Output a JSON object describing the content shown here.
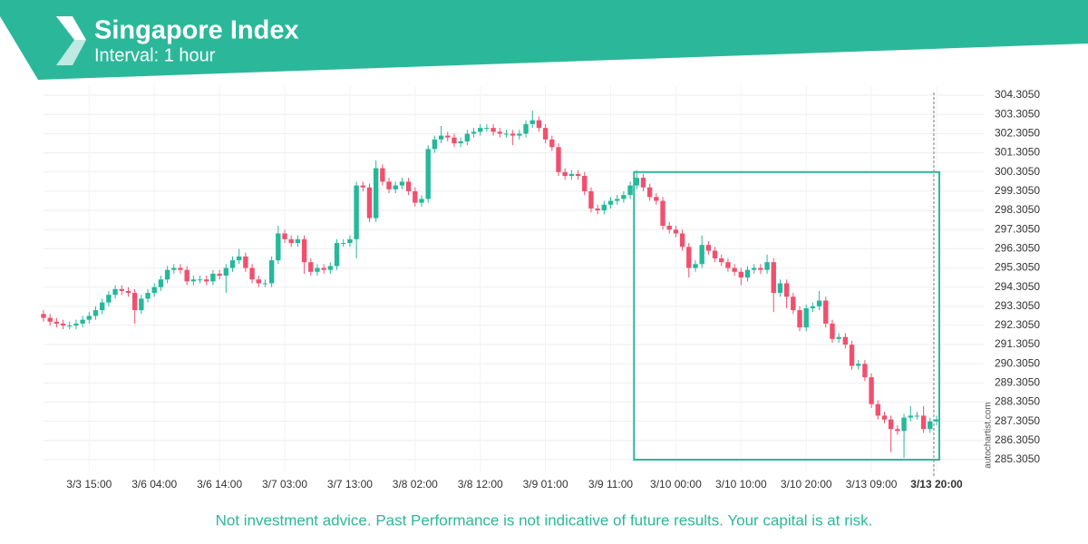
{
  "chart_data": {
    "type": "candlestick",
    "title": "Singapore Index",
    "subtitle": "Interval: 1 hour",
    "footer": "Not investment advice. Past Performance is not indicative of future results. Your capital is at risk.",
    "watermark": "autochartist.com",
    "up_color": "#26b89a",
    "down_color": "#f0506e",
    "grid": true,
    "categories": [
      null,
      null,
      null,
      null,
      null,
      null,
      null,
      "3/3 15:00",
      null,
      null,
      null,
      null,
      null,
      null,
      null,
      null,
      null,
      "3/6 04:00",
      null,
      null,
      null,
      null,
      null,
      null,
      null,
      null,
      null,
      "3/6 14:00",
      null,
      null,
      null,
      null,
      null,
      null,
      null,
      null,
      null,
      "3/7 03:00",
      null,
      null,
      null,
      null,
      null,
      null,
      null,
      null,
      null,
      "3/7 13:00",
      null,
      null,
      null,
      null,
      null,
      null,
      null,
      null,
      null,
      "3/8 02:00",
      null,
      null,
      null,
      null,
      null,
      null,
      null,
      null,
      null,
      "3/8 12:00",
      null,
      null,
      null,
      null,
      null,
      null,
      null,
      null,
      null,
      "3/9 01:00",
      null,
      null,
      null,
      null,
      null,
      null,
      null,
      null,
      null,
      "3/9 11:00",
      null,
      null,
      null,
      null,
      null,
      null,
      null,
      null,
      null,
      "3/10 00:00",
      null,
      null,
      null,
      null,
      null,
      null,
      null,
      null,
      null,
      "3/10 10:00",
      null,
      null,
      null,
      null,
      null,
      null,
      null,
      null,
      null,
      "3/10 20:00",
      null,
      null,
      null,
      null,
      null,
      null,
      null,
      null,
      null,
      "3/13 09:00",
      null,
      null,
      null,
      null,
      null,
      null,
      null,
      null,
      null,
      "3/13 20:00"
    ],
    "open": [
      292.9,
      292.7,
      292.5,
      292.4,
      292.3,
      292.3,
      292.4,
      292.6,
      292.8,
      293.1,
      293.5,
      293.9,
      294.2,
      294.1,
      294.0,
      293.1,
      293.7,
      294.0,
      294.3,
      294.7,
      295.2,
      295.3,
      295.2,
      294.6,
      294.7,
      294.7,
      294.6,
      295.0,
      294.9,
      295.3,
      295.7,
      295.9,
      295.3,
      294.7,
      294.5,
      294.5,
      295.7,
      297.1,
      296.8,
      296.6,
      296.8,
      295.6,
      295.1,
      295.3,
      295.2,
      295.4,
      296.6,
      296.6,
      296.8,
      299.6,
      299.5,
      297.9,
      300.5,
      299.8,
      299.4,
      299.6,
      299.8,
      299.3,
      298.7,
      298.9,
      301.5,
      302.0,
      302.2,
      302.1,
      301.8,
      301.9,
      302.3,
      302.4,
      302.6,
      302.6,
      302.4,
      302.3,
      302.3,
      302.2,
      302.3,
      302.8,
      303.0,
      302.6,
      302.0,
      301.6,
      300.3,
      300.1,
      300.2,
      300.1,
      299.3,
      298.4,
      298.3,
      298.6,
      298.8,
      298.9,
      299.1,
      299.6,
      300.0,
      299.5,
      299.0,
      298.8,
      297.5,
      297.3,
      297.1,
      296.4,
      295.3,
      295.5,
      296.5,
      296.2,
      295.8,
      295.6,
      295.3,
      295.1,
      294.8,
      295.2,
      295.3,
      295.2,
      295.6,
      294.0,
      294.5,
      293.8,
      293.1,
      292.2,
      293.2,
      293.3,
      293.6,
      292.4,
      291.6,
      291.7,
      291.3,
      290.2,
      290.3,
      289.6,
      288.2,
      287.6,
      287.4,
      286.9,
      286.8,
      287.5,
      287.6,
      287.6,
      286.9,
      287.3
    ],
    "high": [
      293.1,
      292.9,
      292.7,
      292.6,
      292.5,
      292.6,
      292.8,
      293.0,
      293.3,
      293.7,
      294.1,
      294.4,
      294.4,
      294.3,
      294.2,
      293.9,
      294.2,
      294.5,
      294.9,
      295.4,
      295.5,
      295.5,
      295.4,
      294.9,
      294.9,
      294.9,
      295.2,
      295.2,
      295.5,
      295.9,
      296.3,
      296.1,
      295.5,
      294.9,
      294.7,
      295.9,
      297.5,
      297.3,
      297.0,
      297.0,
      297.0,
      295.8,
      295.5,
      295.5,
      295.6,
      296.8,
      296.8,
      297.0,
      299.8,
      299.8,
      299.7,
      300.9,
      300.7,
      300.0,
      299.8,
      300.0,
      300.0,
      299.5,
      299.1,
      301.7,
      302.2,
      302.7,
      302.4,
      302.3,
      302.1,
      302.5,
      302.6,
      302.8,
      302.8,
      302.8,
      302.6,
      302.5,
      302.5,
      302.5,
      303.0,
      303.5,
      303.2,
      302.8,
      302.2,
      301.8,
      300.5,
      300.4,
      300.4,
      300.3,
      299.5,
      298.6,
      298.8,
      299.0,
      299.1,
      299.3,
      299.8,
      300.4,
      300.2,
      299.7,
      299.2,
      299.0,
      297.7,
      297.5,
      297.3,
      296.6,
      295.7,
      297.0,
      296.7,
      296.4,
      296.0,
      295.8,
      295.5,
      295.3,
      295.4,
      295.5,
      295.5,
      296.0,
      295.8,
      294.7,
      294.7,
      294.0,
      293.3,
      293.4,
      293.5,
      294.1,
      293.8,
      292.6,
      291.9,
      291.9,
      291.5,
      290.5,
      290.5,
      289.8,
      288.4,
      287.8,
      287.6,
      287.1,
      287.7,
      288.1,
      287.8,
      288.1,
      287.5,
      287.6
    ],
    "low": [
      292.5,
      292.3,
      292.2,
      292.1,
      292.1,
      292.1,
      292.2,
      292.4,
      292.6,
      292.9,
      293.3,
      293.7,
      293.9,
      293.8,
      292.4,
      292.9,
      293.5,
      293.8,
      294.1,
      294.5,
      295.0,
      295.0,
      294.4,
      294.4,
      294.5,
      294.4,
      294.4,
      294.7,
      294.0,
      295.1,
      295.5,
      295.1,
      294.5,
      294.3,
      294.3,
      294.3,
      295.5,
      296.6,
      296.4,
      296.4,
      295.0,
      294.9,
      294.9,
      295.0,
      295.0,
      295.2,
      296.4,
      296.4,
      295.8,
      299.3,
      297.7,
      297.7,
      299.6,
      299.2,
      299.2,
      299.4,
      299.1,
      298.5,
      298.5,
      298.7,
      301.3,
      301.8,
      301.9,
      301.6,
      301.6,
      301.7,
      302.1,
      302.2,
      302.4,
      302.2,
      302.1,
      302.1,
      301.7,
      302.0,
      302.1,
      302.6,
      302.4,
      301.8,
      301.4,
      300.1,
      299.9,
      299.9,
      299.9,
      299.1,
      298.2,
      298.1,
      298.1,
      298.4,
      298.6,
      298.7,
      298.9,
      299.4,
      299.3,
      298.8,
      298.6,
      297.3,
      297.1,
      296.9,
      296.2,
      294.8,
      295.1,
      295.3,
      296.0,
      295.6,
      295.4,
      295.1,
      294.9,
      294.4,
      294.6,
      295.0,
      295.0,
      295.0,
      293.0,
      293.8,
      293.2,
      292.9,
      292.0,
      292.0,
      293.0,
      293.1,
      292.2,
      291.4,
      291.4,
      291.1,
      290.0,
      290.0,
      289.4,
      288.0,
      287.4,
      287.2,
      285.7,
      286.6,
      285.4,
      287.3,
      287.4,
      286.7,
      286.7,
      287.1
    ],
    "close": [
      292.7,
      292.5,
      292.4,
      292.3,
      292.3,
      292.4,
      292.6,
      292.8,
      293.1,
      293.5,
      293.9,
      294.2,
      294.1,
      294.0,
      293.1,
      293.7,
      294.0,
      294.3,
      294.7,
      295.2,
      295.3,
      295.2,
      294.6,
      294.7,
      294.7,
      294.6,
      295.0,
      294.9,
      295.3,
      295.7,
      295.9,
      295.3,
      294.7,
      294.5,
      294.5,
      295.7,
      297.1,
      296.8,
      296.6,
      296.8,
      295.6,
      295.1,
      295.3,
      295.2,
      295.4,
      296.6,
      296.6,
      296.8,
      299.6,
      299.5,
      297.9,
      300.5,
      299.8,
      299.4,
      299.6,
      299.8,
      299.3,
      298.7,
      298.9,
      301.5,
      302.0,
      302.2,
      302.1,
      301.8,
      301.9,
      302.3,
      302.4,
      302.6,
      302.6,
      302.4,
      302.3,
      302.3,
      302.2,
      302.3,
      302.8,
      303.0,
      302.6,
      302.0,
      301.6,
      300.3,
      300.1,
      300.2,
      300.1,
      299.3,
      298.4,
      298.3,
      298.6,
      298.8,
      298.9,
      299.1,
      299.6,
      300.0,
      299.5,
      299.0,
      298.8,
      297.5,
      297.3,
      297.1,
      296.4,
      295.3,
      295.5,
      296.5,
      296.2,
      295.8,
      295.6,
      295.3,
      295.1,
      294.8,
      295.2,
      295.3,
      295.2,
      295.6,
      294.0,
      294.5,
      293.8,
      293.1,
      292.2,
      293.2,
      293.3,
      293.6,
      292.4,
      291.6,
      291.7,
      291.3,
      290.2,
      290.3,
      289.6,
      288.2,
      287.6,
      287.4,
      286.9,
      286.8,
      287.5,
      287.6,
      287.6,
      286.9,
      287.3,
      287.4
    ],
    "pattern": {
      "start": 91,
      "end": 137,
      "top": 300.3,
      "bottom": 285.305,
      "color": "#2bb89a"
    },
    "ylim": [
      284.69,
      304.78
    ],
    "yticks": [
      {
        "value": 285.305,
        "label": "285.3050"
      },
      {
        "value": 286.305,
        "label": "286.3050"
      },
      {
        "value": 287.305,
        "label": "287.3050"
      },
      {
        "value": 288.305,
        "label": "288.3050"
      },
      {
        "value": 289.305,
        "label": "289.3050"
      },
      {
        "value": 290.305,
        "label": "290.3050"
      },
      {
        "value": 291.305,
        "label": "291.3050"
      },
      {
        "value": 292.305,
        "label": "292.3050"
      },
      {
        "value": 293.305,
        "label": "293.3050"
      },
      {
        "value": 294.305,
        "label": "294.3050"
      },
      {
        "value": 295.305,
        "label": "295.3050"
      },
      {
        "value": 296.305,
        "label": "296.3050"
      },
      {
        "value": 297.305,
        "label": "297.3050"
      },
      {
        "value": 298.305,
        "label": "298.3050"
      },
      {
        "value": 299.305,
        "label": "299.3050"
      },
      {
        "value": 300.305,
        "label": "300.3050"
      },
      {
        "value": 301.305,
        "label": "301.3050"
      },
      {
        "value": 302.305,
        "label": "302.3050"
      },
      {
        "value": 303.305,
        "label": "303.3050"
      },
      {
        "value": 304.305,
        "label": "304.3050"
      }
    ]
  }
}
